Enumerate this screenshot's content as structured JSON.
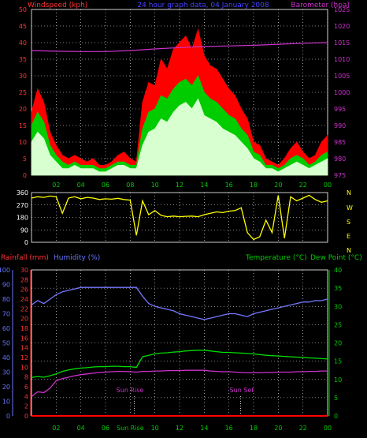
{
  "header": {
    "left": "Windspeed (kph)",
    "center": "24 hour graph data, 04 January 2008",
    "right": "Barometer (hpa)"
  },
  "panel2": {
    "compass": [
      "N",
      "W",
      "S",
      "E",
      "N"
    ]
  },
  "panel3": {
    "left1": "Rainfall (mm)",
    "left2": "Humidity (%)",
    "right1": "Temperature (°C)",
    "right2": "Dew Point (°C)",
    "sunrise": "Sun Rise",
    "sunset": "Sun Set",
    "sunrise_tick": "Sun Rise"
  },
  "colors": {
    "gust": "#ff0000",
    "wind": "#00cc00",
    "avg": "#d8ffd0",
    "baro": "#cc33cc",
    "dir": "#ffff00",
    "humidity": "#7777ff",
    "temp": "#00dd00",
    "dew": "#cc33cc",
    "rain": "#ff0000",
    "axis_left1": "#ff3333",
    "axis_left2": "#6677ff",
    "axis_right": "#00cc00",
    "grid": "#ffffff",
    "text_left": "#ff3333",
    "text_mid": "#4444ff",
    "text_right": "#cc33cc",
    "bg": "#000000"
  },
  "chart_data": [
    {
      "type": "area",
      "name": "wind",
      "x_ticks": [
        "02",
        "04",
        "06",
        "08",
        "10",
        "12",
        "14",
        "16",
        "18",
        "20",
        "22",
        "00"
      ],
      "y_left": {
        "label": "Windspeed (kph)",
        "ylim": [
          0,
          50
        ],
        "ticks": [
          0,
          5,
          10,
          15,
          20,
          25,
          30,
          35,
          40,
          45,
          50
        ]
      },
      "y_right": {
        "label": "Barometer (hpa)",
        "ylim": [
          975,
          1025
        ],
        "ticks": [
          975,
          980,
          985,
          990,
          995,
          1000,
          1005,
          1010,
          1015,
          1020,
          1025
        ]
      },
      "series": [
        {
          "key": "gust",
          "hours": [
            0,
            0.5,
            1,
            1.5,
            2,
            2.5,
            3,
            3.5,
            4,
            4.5,
            5,
            5.5,
            6,
            6.5,
            7,
            7.5,
            8,
            8.5,
            9,
            9.5,
            10,
            10.5,
            11,
            11.5,
            12,
            12.5,
            13,
            13.5,
            14,
            14.5,
            15,
            15.5,
            16,
            16.5,
            17,
            17.5,
            18,
            18.5,
            19,
            19.5,
            20,
            20.5,
            21,
            21.5,
            22,
            22.5,
            23,
            23.5,
            24
          ],
          "values": [
            19,
            26,
            22,
            13,
            9,
            6,
            5,
            6,
            5,
            4,
            5,
            3,
            3,
            4,
            6,
            7,
            5,
            4,
            22,
            28,
            27,
            35,
            32,
            38,
            40,
            42,
            38,
            44,
            36,
            33,
            32,
            29,
            26,
            24,
            20,
            17,
            10,
            9,
            5,
            4,
            3,
            5,
            8,
            10,
            7,
            5,
            6,
            10,
            12
          ]
        },
        {
          "key": "wind",
          "hours": [
            0,
            0.5,
            1,
            1.5,
            2,
            2.5,
            3,
            3.5,
            4,
            4.5,
            5,
            5.5,
            6,
            6.5,
            7,
            7.5,
            8,
            8.5,
            9,
            9.5,
            10,
            10.5,
            11,
            11.5,
            12,
            12.5,
            13,
            13.5,
            14,
            14.5,
            15,
            15.5,
            16,
            16.5,
            17,
            17.5,
            18,
            18.5,
            19,
            19.5,
            20,
            20.5,
            21,
            21.5,
            22,
            22.5,
            23,
            23.5,
            24
          ],
          "values": [
            15,
            19,
            16,
            9,
            6,
            4,
            3,
            4,
            3,
            3,
            3,
            2,
            2,
            3,
            4,
            4,
            3,
            3,
            14,
            19,
            20,
            24,
            23,
            26,
            28,
            29,
            27,
            30,
            25,
            23,
            22,
            20,
            18,
            17,
            14,
            12,
            7,
            6,
            3,
            3,
            2,
            3,
            5,
            6,
            5,
            3,
            4,
            6,
            7
          ]
        },
        {
          "key": "avg",
          "hours": [
            0,
            0.5,
            1,
            1.5,
            2,
            2.5,
            3,
            3.5,
            4,
            4.5,
            5,
            5.5,
            6,
            6.5,
            7,
            7.5,
            8,
            8.5,
            9,
            9.5,
            10,
            10.5,
            11,
            11.5,
            12,
            12.5,
            13,
            13.5,
            14,
            14.5,
            15,
            15.5,
            16,
            16.5,
            17,
            17.5,
            18,
            18.5,
            19,
            19.5,
            20,
            20.5,
            21,
            21.5,
            22,
            22.5,
            23,
            23.5,
            24
          ],
          "values": [
            10,
            13,
            11,
            6,
            4,
            2,
            2,
            3,
            2,
            2,
            2,
            1,
            1,
            2,
            3,
            3,
            2,
            2,
            9,
            13,
            14,
            17,
            16,
            19,
            21,
            22,
            20,
            23,
            18,
            17,
            16,
            14,
            13,
            12,
            10,
            8,
            5,
            4,
            2,
            2,
            1,
            2,
            3,
            4,
            3,
            2,
            3,
            4,
            5
          ]
        },
        {
          "key": "baro",
          "hours": [
            0,
            2,
            4,
            6,
            8,
            10,
            12,
            14,
            16,
            18,
            20,
            22,
            24
          ],
          "values": [
            1012.6,
            1012.4,
            1012.3,
            1012.3,
            1012.6,
            1013.1,
            1013.5,
            1013.8,
            1014.0,
            1014.2,
            1014.5,
            1014.8,
            1015.0
          ]
        }
      ]
    },
    {
      "type": "scatter",
      "name": "wind_direction",
      "y_left": {
        "ylim": [
          0,
          360
        ],
        "ticks": [
          0,
          90,
          180,
          270,
          360
        ]
      },
      "series": [
        {
          "key": "dir",
          "hours": [
            0,
            0.5,
            1,
            1.5,
            2,
            2.5,
            3,
            3.5,
            4,
            4.5,
            5,
            5.5,
            6,
            6.5,
            7,
            7.5,
            8,
            8.5,
            9,
            9.5,
            10,
            10.5,
            11,
            11.5,
            12,
            12.5,
            13,
            13.5,
            14,
            14.5,
            15,
            15.5,
            16,
            16.5,
            17,
            17.5,
            18,
            18.5,
            19,
            19.5,
            20,
            20.5,
            21,
            21.5,
            22,
            22.5,
            23,
            23.5,
            24
          ],
          "values": [
            320,
            330,
            325,
            335,
            330,
            210,
            320,
            330,
            315,
            325,
            320,
            310,
            315,
            312,
            318,
            310,
            305,
            50,
            300,
            200,
            230,
            195,
            185,
            190,
            185,
            188,
            190,
            185,
            200,
            210,
            220,
            215,
            225,
            230,
            250,
            70,
            20,
            40,
            160,
            70,
            340,
            30,
            330,
            300,
            320,
            340,
            310,
            290,
            300
          ]
        }
      ]
    },
    {
      "type": "line",
      "name": "temperature_humidity",
      "y_left1": {
        "label": "Rainfall (mm)",
        "ylim": [
          0,
          30
        ],
        "ticks": [
          0,
          2,
          4,
          6,
          8,
          10,
          12,
          14,
          16,
          18,
          20,
          22,
          24,
          26,
          28,
          30
        ]
      },
      "y_left2": {
        "label": "Humidity (%)",
        "ylim": [
          0,
          100
        ],
        "ticks": [
          0,
          10,
          20,
          30,
          40,
          50,
          60,
          70,
          80,
          90,
          100
        ]
      },
      "y_right": {
        "label": "Temperature (°C)",
        "ylim": [
          0,
          40
        ],
        "ticks": [
          0,
          5,
          10,
          15,
          20,
          25,
          30,
          35,
          40
        ]
      },
      "series": [
        {
          "key": "humidity",
          "hours": [
            0,
            0.5,
            1,
            1.5,
            2,
            2.5,
            3,
            3.5,
            4,
            4.5,
            5,
            5.5,
            6,
            6.5,
            7,
            7.5,
            8,
            8.5,
            9,
            9.5,
            10,
            10.5,
            11,
            11.5,
            12,
            12.5,
            13,
            13.5,
            14,
            14.5,
            15,
            15.5,
            16,
            16.5,
            17,
            17.5,
            18,
            18.5,
            19,
            19.5,
            20,
            20.5,
            21,
            21.5,
            22,
            22.5,
            23,
            23.5,
            24
          ],
          "values": [
            76,
            79,
            77,
            80,
            83,
            85,
            86,
            87,
            88,
            88,
            88,
            88,
            88,
            88,
            88,
            88,
            88,
            88,
            82,
            77,
            75,
            74,
            73,
            72,
            70,
            69,
            68,
            67,
            66,
            67,
            68,
            69,
            70,
            70,
            69,
            68,
            70,
            71,
            72,
            73,
            74,
            75,
            76,
            77,
            78,
            78,
            79,
            79,
            80
          ]
        },
        {
          "key": "temp",
          "hours": [
            0,
            0.5,
            1,
            1.5,
            2,
            2.5,
            3,
            3.5,
            4,
            4.5,
            5,
            5.5,
            6,
            6.5,
            7,
            7.5,
            8,
            8.5,
            9,
            9.5,
            10,
            10.5,
            11,
            11.5,
            12,
            12.5,
            13,
            13.5,
            14,
            14.5,
            15,
            15.5,
            16,
            16.5,
            17,
            17.5,
            18,
            18.5,
            19,
            19.5,
            20,
            20.5,
            21,
            21.5,
            22,
            22.5,
            23,
            23.5,
            24
          ],
          "values": [
            10.5,
            10.8,
            10.6,
            11,
            11.5,
            12.2,
            12.6,
            12.9,
            13.1,
            13.2,
            13.4,
            13.5,
            13.5,
            13.6,
            13.6,
            13.5,
            13.5,
            13.3,
            16.2,
            16.6,
            17.0,
            17.2,
            17.3,
            17.5,
            17.6,
            17.8,
            17.9,
            18.0,
            18.0,
            17.8,
            17.6,
            17.4,
            17.4,
            17.3,
            17.2,
            17.1,
            17.0,
            16.8,
            16.6,
            16.5,
            16.4,
            16.3,
            16.2,
            16.1,
            16.0,
            15.9,
            15.8,
            15.7,
            15.6
          ]
        },
        {
          "key": "dew",
          "hours": [
            0,
            0.5,
            1,
            1.5,
            2,
            2.5,
            3,
            3.5,
            4,
            4.5,
            5,
            5.5,
            6,
            6.5,
            7,
            7.5,
            8,
            8.5,
            9,
            9.5,
            10,
            10.5,
            11,
            11.5,
            12,
            12.5,
            13,
            13.5,
            14,
            14.5,
            15,
            15.5,
            16,
            16.5,
            17,
            17.5,
            18,
            18.5,
            19,
            19.5,
            20,
            20.5,
            21,
            21.5,
            22,
            22.5,
            23,
            23.5,
            24
          ],
          "values": [
            5.3,
            6.6,
            6.4,
            7.6,
            9.6,
            10.2,
            10.6,
            11.0,
            11.3,
            11.5,
            11.7,
            11.9,
            12.0,
            12.1,
            12.2,
            12.2,
            12.1,
            12.0,
            12.2,
            12.2,
            12.3,
            12.3,
            12.4,
            12.4,
            12.4,
            12.5,
            12.5,
            12.5,
            12.5,
            12.3,
            12.2,
            12.1,
            12.1,
            12.0,
            11.9,
            11.8,
            11.8,
            11.8,
            11.9,
            11.9,
            12.0,
            12.0,
            12.0,
            12.1,
            12.1,
            12.2,
            12.2,
            12.3,
            12.3
          ]
        },
        {
          "key": "rain",
          "hours": [
            0,
            24
          ],
          "values": [
            0,
            0
          ]
        }
      ],
      "markers": {
        "sunrise_hour": 8.33,
        "sunset_hour": 16.95
      }
    }
  ]
}
